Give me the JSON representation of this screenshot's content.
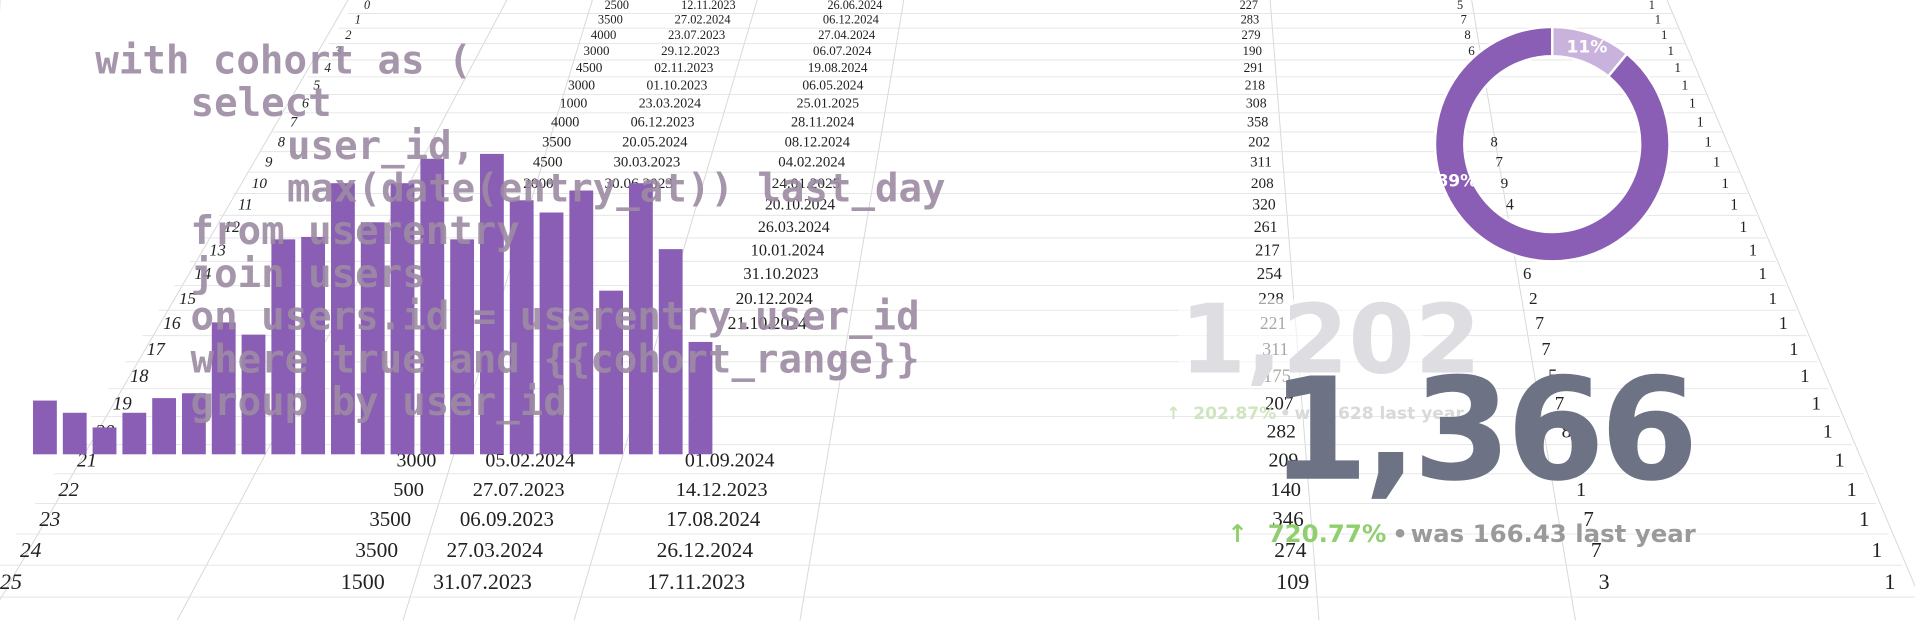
{
  "chart_data": [
    {
      "type": "bar",
      "values": [
        44,
        34,
        22,
        34,
        46,
        50,
        108,
        98,
        176,
        178,
        222,
        190,
        222,
        242,
        176,
        246,
        208,
        198,
        216,
        134,
        222,
        168,
        92
      ],
      "color": "#8a5eb4",
      "ylim": [
        0,
        250
      ]
    },
    {
      "type": "pie",
      "values": [
        11,
        89
      ],
      "value_labels": [
        "11%",
        "89%"
      ],
      "colors": [
        "#c9b3dc",
        "#8a5eb4"
      ]
    }
  ],
  "sheet": {
    "rows": [
      [
        0,
        2500,
        "12.11.2023",
        "26.06.2024",
        227,
        5,
        1
      ],
      [
        1,
        3500,
        "27.02.2024",
        "06.12.2024",
        283,
        7,
        1
      ],
      [
        2,
        4000,
        "23.07.2023",
        "27.04.2024",
        279,
        8,
        1
      ],
      [
        3,
        3000,
        "29.12.2023",
        "06.07.2024",
        190,
        6,
        1
      ],
      [
        4,
        4500,
        "02.11.2023",
        "19.08.2024",
        291,
        null,
        1
      ],
      [
        5,
        3000,
        "01.10.2023",
        "06.05.2024",
        218,
        null,
        1
      ],
      [
        6,
        1000,
        "23.03.2024",
        "25.01.2025",
        308,
        null,
        1
      ],
      [
        7,
        4000,
        "06.12.2023",
        "28.11.2024",
        358,
        null,
        1
      ],
      [
        8,
        3500,
        "20.05.2024",
        "08.12.2024",
        202,
        8,
        1
      ],
      [
        9,
        4500,
        "30.03.2023",
        "04.02.2024",
        311,
        7,
        1
      ],
      [
        10,
        2000,
        "30.06.2023",
        "24.01.2025",
        208,
        9,
        1
      ],
      [
        11,
        null,
        null,
        "20.10.2024",
        320,
        4,
        1
      ],
      [
        12,
        null,
        null,
        "26.03.2024",
        261,
        null,
        1
      ],
      [
        13,
        null,
        null,
        "10.01.2024",
        217,
        null,
        1
      ],
      [
        14,
        null,
        null,
        "31.10.2023",
        254,
        6,
        1
      ],
      [
        15,
        null,
        null,
        "20.12.2024",
        228,
        2,
        1
      ],
      [
        16,
        null,
        null,
        "21.10.2024",
        221,
        7,
        1
      ],
      [
        17,
        null,
        null,
        null,
        311,
        7,
        1
      ],
      [
        18,
        null,
        null,
        null,
        175,
        5,
        1
      ],
      [
        19,
        null,
        null,
        null,
        207,
        7,
        1
      ],
      [
        20,
        null,
        null,
        null,
        282,
        8,
        1
      ],
      [
        21,
        3000,
        "05.02.2024",
        "01.09.2024",
        209,
        6,
        1
      ],
      [
        22,
        500,
        "27.07.2023",
        "14.12.2023",
        140,
        1,
        1
      ],
      [
        23,
        3500,
        "06.09.2023",
        "17.08.2024",
        346,
        7,
        1
      ],
      [
        24,
        3500,
        "27.03.2024",
        "26.12.2024",
        274,
        7,
        1
      ],
      [
        25,
        1500,
        "31.07.2023",
        "17.11.2023",
        109,
        3,
        1
      ]
    ]
  },
  "code": {
    "lines": [
      "with cohort as (",
      "select",
      "user_id,",
      "max(date(entry_at)) last_day",
      "from userentry",
      "join users",
      "on users.id = userentry.user_id",
      "where true and {{cohort_range}}",
      "group by user_id"
    ]
  },
  "kpi_back": {
    "value": "1,202",
    "change": "202.87%",
    "previous": "was 628 last year"
  },
  "kpi_front": {
    "value": "1,366",
    "change": "720.77%",
    "previous": "was 166.43 last year"
  }
}
